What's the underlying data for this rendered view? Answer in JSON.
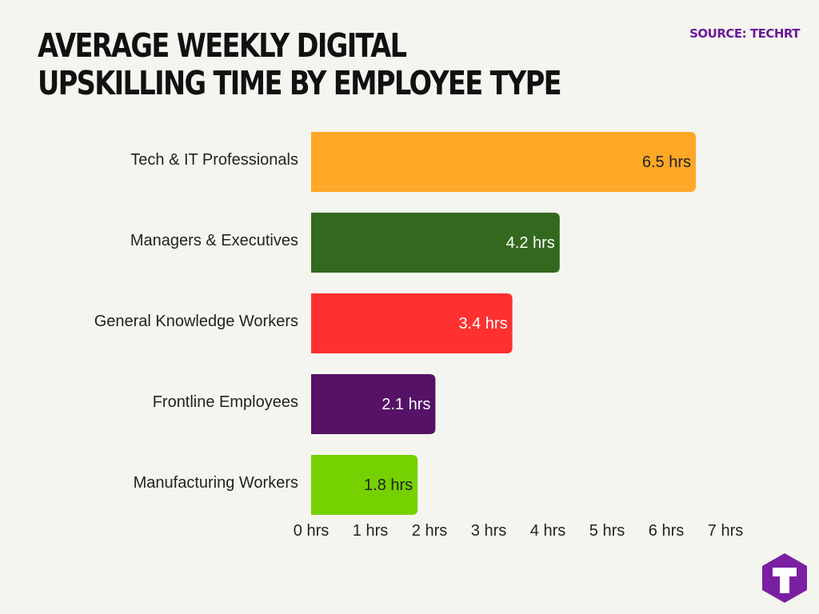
{
  "title": "AVERAGE WEEKLY DIGITAL UPSKILLING TIME BY EMPLOYEE TYPE",
  "source": "SOURCE: TECHRT",
  "logo_letter": "T",
  "colors": {
    "background": "#f5f5f0",
    "brand": "#6a1b9a",
    "logo_bg": "#7b1fa2"
  },
  "chart_data": {
    "type": "bar",
    "orientation": "horizontal",
    "categories": [
      "Tech & IT Professionals",
      "Managers & Executives",
      "General Knowledge Workers",
      "Frontline Employees",
      "Manufacturing Workers"
    ],
    "values": [
      6.5,
      4.2,
      3.4,
      2.1,
      1.8
    ],
    "value_labels": [
      "6.5 hrs",
      "4.2 hrs",
      "3.4 hrs",
      "2.1 hrs",
      "1.8 hrs"
    ],
    "colors": [
      "#ffa726",
      "#33691e",
      "#ff3030",
      "#551266",
      "#76d100"
    ],
    "label_colors": [
      "#222222",
      "#ffffff",
      "#ffffff",
      "#ffffff",
      "#222222"
    ],
    "xlim": [
      0,
      7
    ],
    "x_ticks": [
      0,
      1,
      2,
      3,
      4,
      5,
      6,
      7
    ],
    "x_tick_labels": [
      "0 hrs",
      "1 hrs",
      "2 hrs",
      "3 hrs",
      "4 hrs",
      "5 hrs",
      "6 hrs",
      "7 hrs"
    ],
    "xlabel": "",
    "ylabel": "",
    "grid": false,
    "legend": "none"
  }
}
